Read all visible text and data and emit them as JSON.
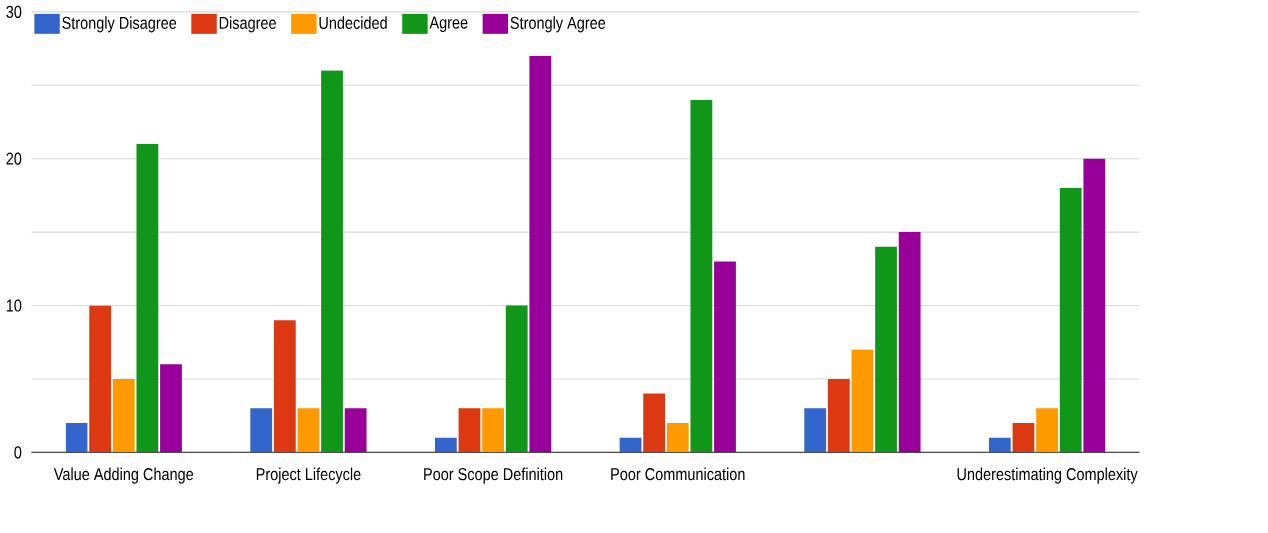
{
  "chart_data": {
    "type": "bar",
    "categories": [
      "Value Adding Change",
      "Project Lifecycle",
      "Poor Scope Definition",
      "Poor Communication",
      null,
      "Underestimating Complexity"
    ],
    "series": [
      {
        "name": "Strongly Disagree",
        "color": "#3366cc",
        "values": [
          2,
          3,
          1,
          1,
          3,
          1
        ]
      },
      {
        "name": "Disagree",
        "color": "#dc3912",
        "values": [
          10,
          9,
          3,
          4,
          5,
          2
        ]
      },
      {
        "name": "Undecided",
        "color": "#ff9900",
        "values": [
          5,
          3,
          3,
          2,
          7,
          3
        ]
      },
      {
        "name": "Agree",
        "color": "#109618",
        "values": [
          21,
          26,
          10,
          24,
          14,
          18
        ]
      },
      {
        "name": "Strongly Agree",
        "color": "#990099",
        "values": [
          6,
          3,
          27,
          13,
          15,
          20
        ]
      }
    ],
    "ylim": [
      0,
      30
    ],
    "yticks": [
      0,
      {
        "value": 5,
        "label": null
      },
      10,
      {
        "value": 15,
        "label": null
      },
      20,
      {
        "value": 25,
        "label": null
      },
      30
    ],
    "grid": "y",
    "legend": "top left"
  }
}
